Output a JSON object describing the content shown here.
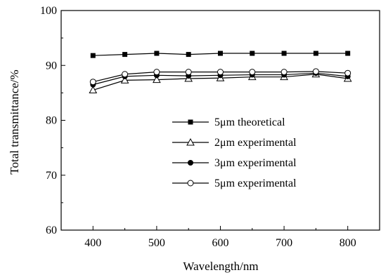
{
  "chart_data": {
    "type": "line",
    "title": "",
    "xlabel": "Wavelength/nm",
    "ylabel": "Total transmittance/%",
    "xlim": [
      350,
      850
    ],
    "ylim": [
      60,
      100
    ],
    "xticks": [
      400,
      500,
      600,
      700,
      800
    ],
    "yticks": [
      60,
      70,
      80,
      90,
      100
    ],
    "grid": false,
    "legend_position": "center-right",
    "x": [
      400,
      450,
      500,
      550,
      600,
      650,
      700,
      750,
      800
    ],
    "series": [
      {
        "name": "5μm theoretical",
        "marker": "filled-square",
        "values": [
          91.8,
          92.0,
          92.2,
          92.0,
          92.2,
          92.2,
          92.2,
          92.2,
          92.2
        ]
      },
      {
        "name": "2μm experimental",
        "marker": "open-triangle",
        "values": [
          85.5,
          87.3,
          87.4,
          87.6,
          87.7,
          87.9,
          87.9,
          88.4,
          87.6
        ]
      },
      {
        "name": "3μm experimental",
        "marker": "filled-circle",
        "values": [
          86.5,
          88.0,
          88.2,
          88.1,
          88.2,
          88.3,
          88.3,
          88.6,
          88.0
        ]
      },
      {
        "name": "5μm experimental",
        "marker": "open-circle",
        "values": [
          87.0,
          88.4,
          88.8,
          88.8,
          88.8,
          88.8,
          88.8,
          88.9,
          88.6
        ]
      }
    ],
    "colors": {
      "line": "#000000",
      "background": "#ffffff"
    }
  }
}
